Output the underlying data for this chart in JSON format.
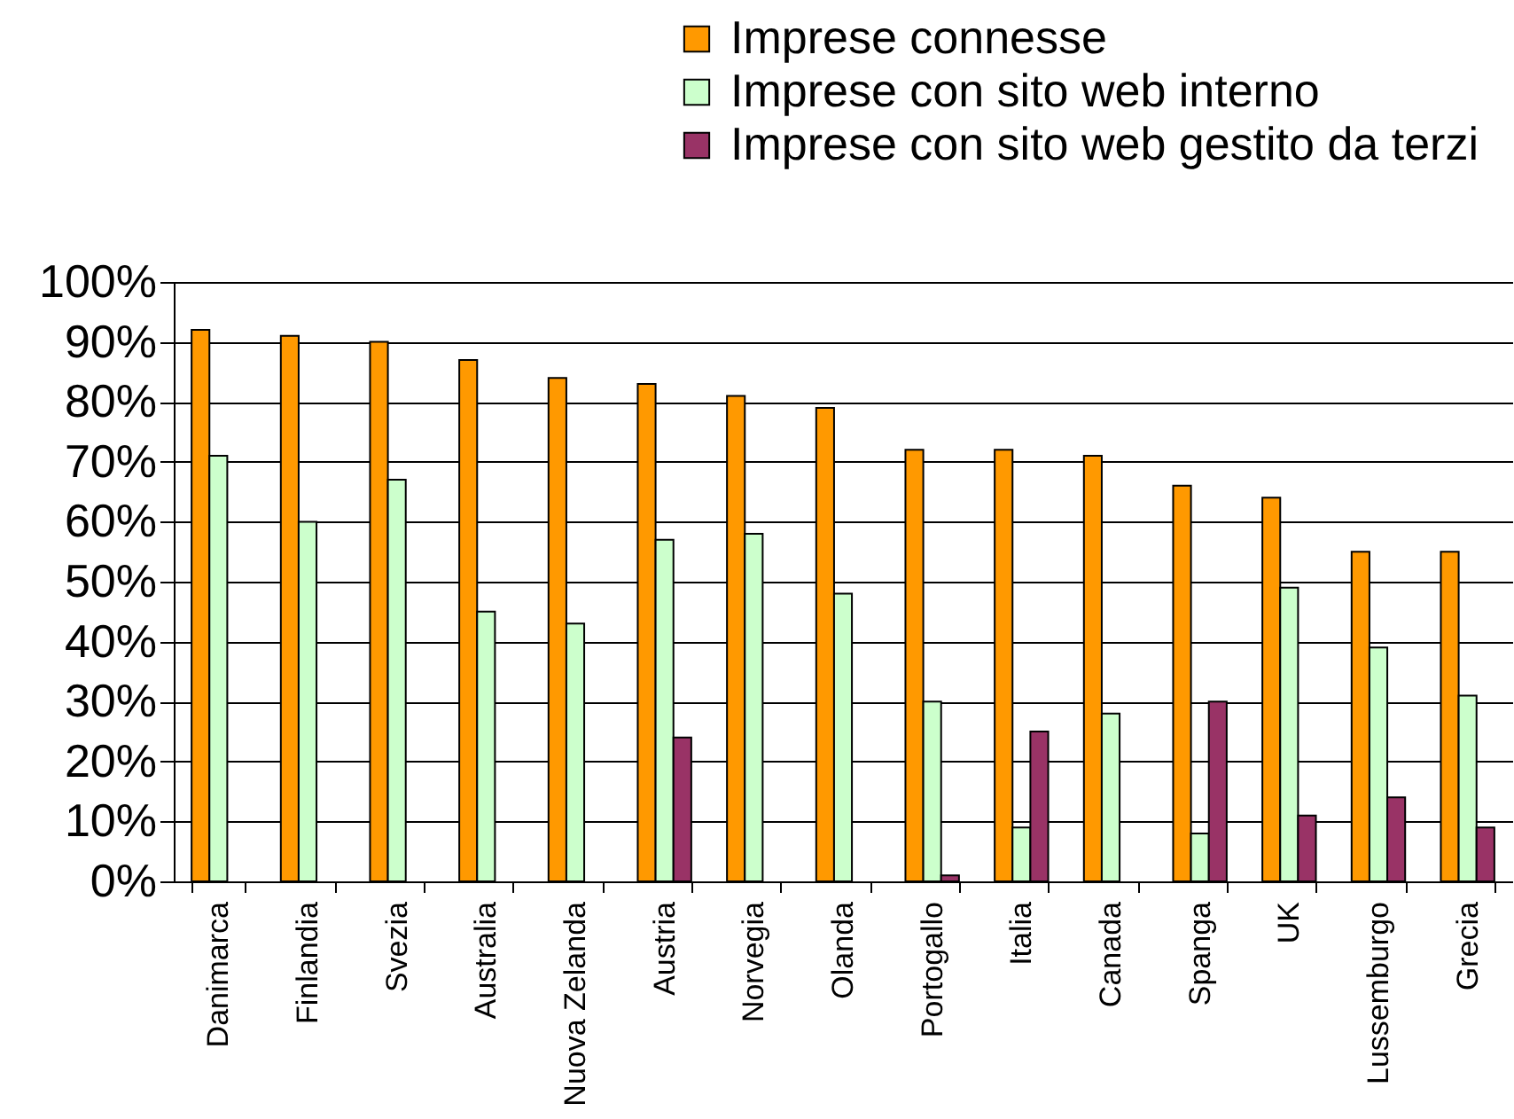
{
  "chart_data": {
    "type": "bar",
    "categories": [
      "Danimarca",
      "Finlandia",
      "Svezia",
      "Australia",
      "Nuova Zelanda",
      "Austria",
      "Norvegia",
      "Olanda",
      "Portogallo",
      "Italia",
      "Canada",
      "Spanga",
      "UK",
      "Lussemburgo",
      "Grecia"
    ],
    "series": [
      {
        "name": "Imprese connesse",
        "color": "#ff9900",
        "values": [
          92,
          91,
          90,
          87,
          84,
          83,
          81,
          79,
          72,
          72,
          71,
          66,
          64,
          55,
          55
        ]
      },
      {
        "name": "Imprese con sito web interno",
        "color": "#ccffcc",
        "values": [
          71,
          60,
          67,
          45,
          43,
          57,
          58,
          48,
          30,
          9,
          28,
          8,
          49,
          39,
          31
        ]
      },
      {
        "name": "Imprese con sito web gestito da terzi",
        "color": "#993366",
        "values": [
          null,
          null,
          null,
          null,
          null,
          24,
          null,
          null,
          1,
          25,
          null,
          30,
          11,
          14,
          9
        ]
      }
    ],
    "ylim": [
      0,
      100
    ],
    "yticks": [
      {
        "value": 0,
        "label": "0%"
      },
      {
        "value": 10,
        "label": "10%"
      },
      {
        "value": 20,
        "label": "20%"
      },
      {
        "value": 30,
        "label": "30%"
      },
      {
        "value": 40,
        "label": "40%"
      },
      {
        "value": 50,
        "label": "50%"
      },
      {
        "value": 60,
        "label": "60%"
      },
      {
        "value": 70,
        "label": "70%"
      },
      {
        "value": 80,
        "label": "80%"
      },
      {
        "value": 90,
        "label": "90%"
      },
      {
        "value": 100,
        "label": "100%"
      }
    ],
    "grid": "y",
    "legend": "top right"
  }
}
